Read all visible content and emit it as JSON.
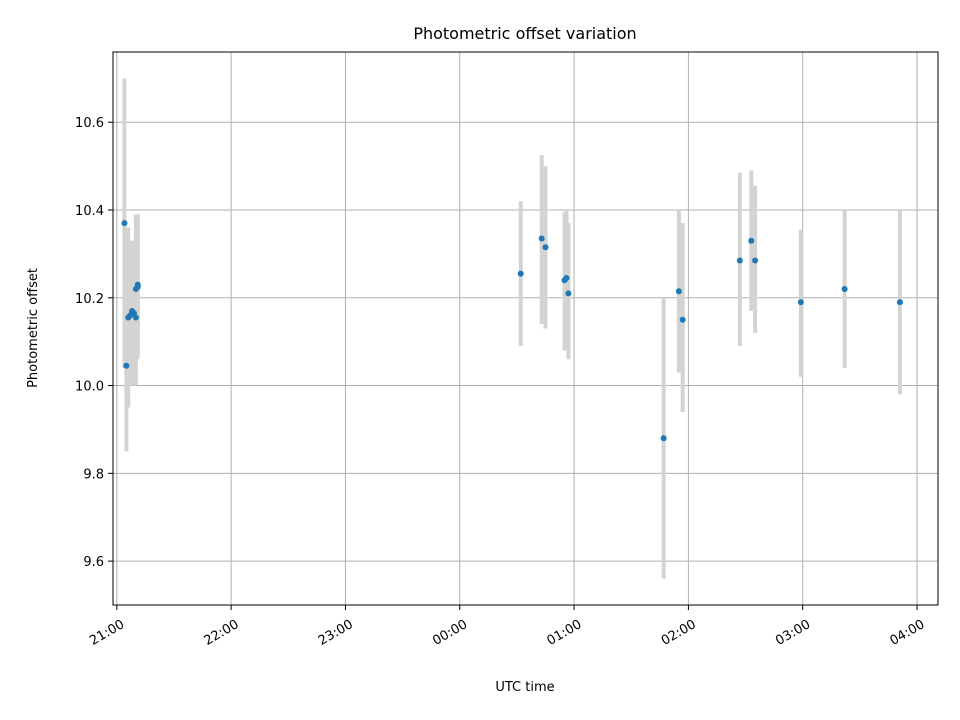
{
  "chart_data": {
    "type": "scatter",
    "title": "Photometric offset variation",
    "xlabel": "UTC time",
    "ylabel": "Photometric offset",
    "x_unit": "UTC clock time (HH:MM, night of two consecutive days)",
    "xlim": [
      "20:58",
      "04:11"
    ],
    "ylim": [
      9.5,
      10.76
    ],
    "x_ticks": [
      "21:00",
      "22:00",
      "23:00",
      "00:00",
      "01:00",
      "02:00",
      "03:00",
      "04:00"
    ],
    "y_ticks": [
      9.6,
      9.8,
      10.0,
      10.2,
      10.4,
      10.6
    ],
    "grid": true,
    "colors": {
      "points": "#1f77b4",
      "error_bars": "#d3d3d3"
    },
    "series": [
      {
        "points": [
          {
            "x": "21:04",
            "y": 10.37,
            "ylow": 10.04,
            "yhigh": 10.7
          },
          {
            "x": "21:05",
            "y": 10.045,
            "ylow": 9.85,
            "yhigh": 10.24
          },
          {
            "x": "21:06",
            "y": 10.155,
            "ylow": 9.95,
            "yhigh": 10.36
          },
          {
            "x": "21:07",
            "y": 10.16,
            "ylow": 10.0,
            "yhigh": 10.33
          },
          {
            "x": "21:08",
            "y": 10.17,
            "ylow": 10.0,
            "yhigh": 10.33
          },
          {
            "x": "21:09",
            "y": 10.165,
            "ylow": 10.0,
            "yhigh": 10.33
          },
          {
            "x": "21:10",
            "y": 10.155,
            "ylow": 10.0,
            "yhigh": 10.31
          },
          {
            "x": "21:10",
            "y": 10.22,
            "ylow": 10.05,
            "yhigh": 10.39
          },
          {
            "x": "21:11",
            "y": 10.23,
            "ylow": 10.08,
            "yhigh": 10.38
          },
          {
            "x": "21:11",
            "y": 10.225,
            "ylow": 10.06,
            "yhigh": 10.39
          },
          {
            "x": "00:32",
            "y": 10.255,
            "ylow": 10.09,
            "yhigh": 10.42
          },
          {
            "x": "00:43",
            "y": 10.335,
            "ylow": 10.14,
            "yhigh": 10.525
          },
          {
            "x": "00:45",
            "y": 10.315,
            "ylow": 10.13,
            "yhigh": 10.5
          },
          {
            "x": "00:55",
            "y": 10.24,
            "ylow": 10.08,
            "yhigh": 10.395
          },
          {
            "x": "00:56",
            "y": 10.245,
            "ylow": 10.08,
            "yhigh": 10.4
          },
          {
            "x": "00:57",
            "y": 10.21,
            "ylow": 10.06,
            "yhigh": 10.37
          },
          {
            "x": "01:47",
            "y": 9.88,
            "ylow": 9.56,
            "yhigh": 10.2
          },
          {
            "x": "01:55",
            "y": 10.215,
            "ylow": 10.03,
            "yhigh": 10.4
          },
          {
            "x": "01:57",
            "y": 10.15,
            "ylow": 9.94,
            "yhigh": 10.37
          },
          {
            "x": "02:27",
            "y": 10.285,
            "ylow": 10.09,
            "yhigh": 10.485
          },
          {
            "x": "02:33",
            "y": 10.33,
            "ylow": 10.17,
            "yhigh": 10.49
          },
          {
            "x": "02:35",
            "y": 10.285,
            "ylow": 10.12,
            "yhigh": 10.455
          },
          {
            "x": "02:59",
            "y": 10.19,
            "ylow": 10.02,
            "yhigh": 10.355
          },
          {
            "x": "03:22",
            "y": 10.22,
            "ylow": 10.04,
            "yhigh": 10.4
          },
          {
            "x": "03:51",
            "y": 10.19,
            "ylow": 9.98,
            "yhigh": 10.4
          }
        ]
      }
    ]
  }
}
